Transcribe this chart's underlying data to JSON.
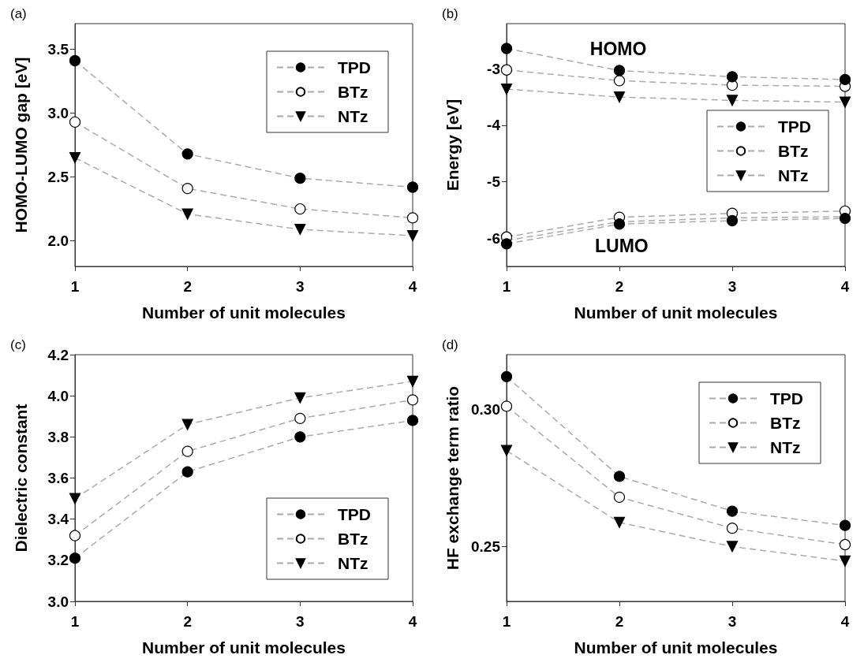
{
  "chart_data": [
    {
      "type": "line",
      "title": "(a)",
      "xlabel": "Number of unit molecules",
      "ylabel": "HOMO-LUMO gap [eV]",
      "x": [
        1,
        2,
        3,
        4
      ],
      "xlim": [
        1,
        4
      ],
      "xticks": [
        1,
        2,
        3,
        4
      ],
      "ylim": [
        1.8,
        3.7
      ],
      "yticks": [
        {
          "value": 2,
          "label": "2.0"
        },
        2.5,
        {
          "value": 3,
          "label": "3.0"
        },
        3.5
      ],
      "grid": false,
      "legend": "top right",
      "line_style": "dashed",
      "series": [
        {
          "name": "TPD",
          "color": "#000000",
          "marker": "circle",
          "values": [
            3.41,
            2.68,
            2.49,
            2.42
          ]
        },
        {
          "name": "BTz",
          "color": "#ffffff",
          "marker": "circle",
          "values": [
            2.93,
            2.41,
            2.25,
            2.18
          ]
        },
        {
          "name": "NTz",
          "color": "#000000",
          "marker": "triangle",
          "values": [
            2.65,
            2.21,
            2.09,
            2.04
          ]
        }
      ]
    },
    {
      "type": "line",
      "title": "(b)",
      "xlabel": "Number of unit molecules",
      "ylabel": "Energy [eV]",
      "x": [
        1,
        2,
        3,
        4
      ],
      "xlim": [
        1,
        4
      ],
      "xticks": [
        1,
        2,
        3,
        4
      ],
      "ylim": [
        -6.5,
        -2.2
      ],
      "yticks": [
        -6,
        -5,
        -4,
        -3
      ],
      "grid": false,
      "legend": "right",
      "line_style": "dashed",
      "annotations": [
        "HOMO",
        "LUMO"
      ],
      "series": [
        {
          "name": "TPD",
          "color": "#000000",
          "marker": "circle",
          "values": [
            -2.64,
            -3.03,
            -3.14,
            -3.19
          ]
        },
        {
          "name": "BTz",
          "color": "#ffffff",
          "marker": "circle",
          "values": [
            -3.02,
            -3.21,
            -3.29,
            -3.31
          ]
        },
        {
          "name": "NTz",
          "color": "#000000",
          "marker": "triangle",
          "values": [
            -3.36,
            -3.5,
            -3.56,
            -3.59
          ]
        },
        {
          "color": "#000000",
          "marker": "circle",
          "values": [
            -6.1,
            -5.75,
            -5.69,
            -5.65
          ]
        },
        {
          "color": "#ffffff",
          "marker": "circle",
          "values": [
            -5.98,
            -5.63,
            -5.56,
            -5.52
          ]
        },
        {
          "color": "#000000",
          "marker": "triangle",
          "values": [
            -6.04,
            -5.71,
            -5.64,
            -5.62
          ]
        }
      ]
    },
    {
      "type": "line",
      "title": "(c)",
      "xlabel": "Number of unit molecules",
      "ylabel": "Dielectric constant",
      "x": [
        1,
        2,
        3,
        4
      ],
      "xlim": [
        1,
        4
      ],
      "xticks": [
        1,
        2,
        3,
        4
      ],
      "ylim": [
        3,
        4.2
      ],
      "yticks": [
        {
          "value": 3,
          "label": "3.0"
        },
        3.2,
        3.4,
        3.6,
        3.8,
        {
          "value": 4,
          "label": "4.0"
        },
        4.2
      ],
      "grid": false,
      "legend": "bottom right",
      "line_style": "dashed",
      "series": [
        {
          "name": "TPD",
          "color": "#000000",
          "marker": "circle",
          "values": [
            3.21,
            3.63,
            3.8,
            3.88
          ]
        },
        {
          "name": "BTz",
          "color": "#ffffff",
          "marker": "circle",
          "values": [
            3.32,
            3.73,
            3.89,
            3.98
          ]
        },
        {
          "name": "NTz",
          "color": "#000000",
          "marker": "triangle",
          "values": [
            3.5,
            3.86,
            3.99,
            4.07
          ]
        }
      ]
    },
    {
      "type": "line",
      "title": "(d)",
      "xlabel": "Number of unit molecules",
      "ylabel": "HF exchange term ratio",
      "x": [
        1,
        2,
        3,
        4
      ],
      "xlim": [
        1,
        4
      ],
      "xticks": [
        1,
        2,
        3,
        4
      ],
      "ylim": [
        0.23,
        0.32
      ],
      "yticks": [
        0.25,
        {
          "value": 0.3,
          "label": "0.30"
        }
      ],
      "grid": false,
      "legend": "top right",
      "line_style": "dashed",
      "series": [
        {
          "name": "TPD",
          "color": "#000000",
          "marker": "circle",
          "values": [
            0.312,
            0.2756,
            0.2629,
            0.2577
          ]
        },
        {
          "name": "BTz",
          "color": "#ffffff",
          "marker": "circle",
          "values": [
            0.3012,
            0.268,
            0.2567,
            0.2507
          ]
        },
        {
          "name": "NTz",
          "color": "#000000",
          "marker": "triangle",
          "values": [
            0.285,
            0.2588,
            0.25,
            0.2447
          ]
        }
      ]
    }
  ]
}
